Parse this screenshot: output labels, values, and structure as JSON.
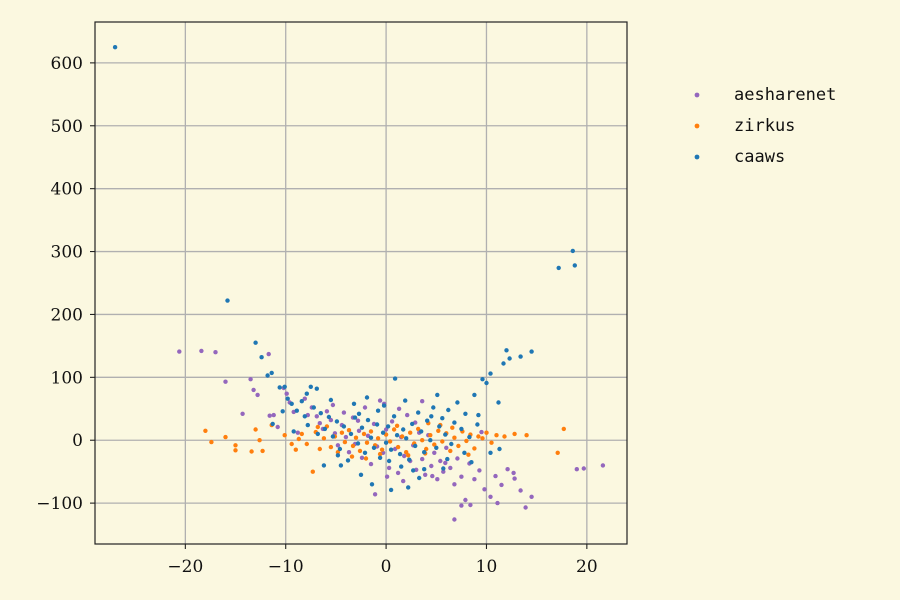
{
  "chart_data": {
    "type": "scatter",
    "title": "",
    "xlabel": "",
    "ylabel": "",
    "xlim": [
      -29,
      24
    ],
    "ylim": [
      -165,
      665
    ],
    "xticks": [
      -20,
      -10,
      0,
      10,
      20
    ],
    "yticks": [
      -100,
      0,
      100,
      200,
      300,
      400,
      500,
      600
    ],
    "xtick_labels": [
      "−20",
      "−10",
      "0",
      "10",
      "20"
    ],
    "ytick_labels": [
      "−100",
      "0",
      "100",
      "200",
      "300",
      "400",
      "500",
      "600"
    ],
    "grid": true,
    "legend_position": "right-outside-top",
    "series": [
      {
        "name": "aesharenet",
        "color": "#9467bd",
        "points": [
          [
            -20.6,
            141
          ],
          [
            -18.4,
            142
          ],
          [
            -17,
            140
          ],
          [
            -16,
            93
          ],
          [
            -14.3,
            42
          ],
          [
            -13.5,
            97
          ],
          [
            -13.2,
            80
          ],
          [
            -12.8,
            72
          ],
          [
            -11.7,
            137
          ],
          [
            -11.2,
            40
          ],
          [
            -10.8,
            21
          ],
          [
            -10.2,
            83
          ],
          [
            -9.6,
            60
          ],
          [
            -9.2,
            45
          ],
          [
            -8.8,
            12
          ],
          [
            -8.1,
            66
          ],
          [
            -7.4,
            52
          ],
          [
            -6.9,
            38
          ],
          [
            -6.6,
            27
          ],
          [
            -6.3,
            18
          ],
          [
            -5.9,
            46
          ],
          [
            -5.5,
            32
          ],
          [
            -5.1,
            11
          ],
          [
            -4.8,
            -8
          ],
          [
            -4.4,
            24
          ],
          [
            -4,
            5
          ],
          [
            -3.7,
            -19
          ],
          [
            -3.3,
            36
          ],
          [
            -3.1,
            -6
          ],
          [
            -2.7,
            15
          ],
          [
            -2.4,
            -28
          ],
          [
            -2.1,
            52
          ],
          [
            -1.8,
            7
          ],
          [
            -1.5,
            -38
          ],
          [
            -1.2,
            26
          ],
          [
            -0.9,
            -10
          ],
          [
            -0.6,
            63
          ],
          [
            -0.3,
            -20
          ],
          [
            0,
            17
          ],
          [
            0.3,
            -44
          ],
          [
            0.6,
            30
          ],
          [
            0.9,
            -14
          ],
          [
            1.2,
            -52
          ],
          [
            1.5,
            5
          ],
          [
            1.8,
            -25
          ],
          [
            2.1,
            40
          ],
          [
            2.4,
            -33
          ],
          [
            2.7,
            -8
          ],
          [
            3,
            -47
          ],
          [
            3.3,
            12
          ],
          [
            3.6,
            -30
          ],
          [
            3.9,
            -55
          ],
          [
            4.2,
            8
          ],
          [
            4.5,
            -41
          ],
          [
            4.8,
            -20
          ],
          [
            5.1,
            -62
          ],
          [
            5.4,
            -33
          ],
          [
            5.7,
            -50
          ],
          [
            6,
            -12
          ],
          [
            6.4,
            -44
          ],
          [
            6.8,
            -70
          ],
          [
            7.1,
            -29
          ],
          [
            7.5,
            -58
          ],
          [
            7.9,
            -95
          ],
          [
            8.3,
            -37
          ],
          [
            8.8,
            -62
          ],
          [
            9.3,
            -48
          ],
          [
            9.8,
            -78
          ],
          [
            10.4,
            -90
          ],
          [
            10.9,
            -57
          ],
          [
            11.5,
            -71
          ],
          [
            12.1,
            -46
          ],
          [
            12.8,
            -61
          ],
          [
            13.4,
            -80
          ],
          [
            13.9,
            -107
          ],
          [
            14.5,
            -90
          ],
          [
            6.8,
            -126
          ],
          [
            7.5,
            -104
          ],
          [
            3.6,
            62
          ],
          [
            1.3,
            50
          ],
          [
            -1.1,
            -86
          ],
          [
            0.1,
            -58
          ],
          [
            2.9,
            28
          ],
          [
            -4.2,
            44
          ],
          [
            -7.8,
            40
          ],
          [
            19,
            -46
          ],
          [
            19.7,
            -45
          ],
          [
            21.6,
            -40
          ],
          [
            -0.2,
            58
          ],
          [
            1.7,
            -65
          ],
          [
            4.6,
            -57
          ],
          [
            8.4,
            -103
          ],
          [
            11.1,
            -100
          ],
          [
            -2.8,
            31
          ],
          [
            -5.3,
            56
          ],
          [
            5.9,
            -36
          ],
          [
            -9.9,
            74
          ],
          [
            9.5,
            13
          ],
          [
            -11.6,
            39
          ],
          [
            12.7,
            -52
          ]
        ]
      },
      {
        "name": "zirkus",
        "color": "#ff7f0e",
        "points": [
          [
            -18,
            15
          ],
          [
            -17.4,
            -3
          ],
          [
            -16,
            5
          ],
          [
            -15,
            -16
          ],
          [
            -15,
            -8
          ],
          [
            -13.4,
            -18
          ],
          [
            -13,
            17
          ],
          [
            -12.6,
            0
          ],
          [
            -12.3,
            -17
          ],
          [
            -11.4,
            24
          ],
          [
            -10.1,
            8
          ],
          [
            -9.4,
            -6
          ],
          [
            -9,
            -15
          ],
          [
            -8.4,
            10
          ],
          [
            -7.9,
            -6
          ],
          [
            -7.3,
            -50
          ],
          [
            -7,
            13
          ],
          [
            -6.6,
            -14
          ],
          [
            -6.2,
            3
          ],
          [
            -5.9,
            22
          ],
          [
            -5.5,
            -11
          ],
          [
            -5.1,
            6
          ],
          [
            -4.8,
            -19
          ],
          [
            -4.4,
            12
          ],
          [
            -4.1,
            -3
          ],
          [
            -3.7,
            16
          ],
          [
            -3.3,
            -9
          ],
          [
            -3,
            4
          ],
          [
            -2.6,
            -17
          ],
          [
            -2.2,
            10
          ],
          [
            -1.9,
            -4
          ],
          [
            -1.5,
            14
          ],
          [
            -1.1,
            -8
          ],
          [
            -0.8,
            3
          ],
          [
            -0.4,
            -15
          ],
          [
            0,
            9
          ],
          [
            0.4,
            -2
          ],
          [
            0.8,
            17
          ],
          [
            1.2,
            -11
          ],
          [
            1.6,
            6
          ],
          [
            2,
            -19
          ],
          [
            2.4,
            12
          ],
          [
            2.8,
            -5
          ],
          [
            3.2,
            18
          ],
          [
            3.6,
            0
          ],
          [
            4,
            -14
          ],
          [
            4.4,
            8
          ],
          [
            4.8,
            -7
          ],
          [
            5.2,
            15
          ],
          [
            5.6,
            -2
          ],
          [
            6,
            11
          ],
          [
            6.4,
            -17
          ],
          [
            6.8,
            4
          ],
          [
            7.2,
            -9
          ],
          [
            7.6,
            14
          ],
          [
            8,
            -1
          ],
          [
            8.4,
            9
          ],
          [
            8.8,
            -13
          ],
          [
            9.2,
            6
          ],
          [
            9.6,
            3
          ],
          [
            10,
            12
          ],
          [
            10.5,
            -4
          ],
          [
            11,
            8
          ],
          [
            11.8,
            6
          ],
          [
            12.8,
            10
          ],
          [
            14,
            8
          ],
          [
            17.1,
            -20
          ],
          [
            17.7,
            18
          ],
          [
            -6.8,
            21
          ],
          [
            -3.4,
            -26
          ],
          [
            2.2,
            -24
          ],
          [
            5.4,
            24
          ],
          [
            -0.6,
            -22
          ],
          [
            1.1,
            23
          ],
          [
            3.9,
            -21
          ],
          [
            -2,
            -29
          ],
          [
            6.6,
            20
          ],
          [
            8.2,
            -23
          ],
          [
            -8.7,
            2
          ],
          [
            4.2,
            27
          ]
        ]
      },
      {
        "name": "caaws",
        "color": "#1f77b4",
        "points": [
          [
            -27,
            625
          ],
          [
            -15.8,
            222
          ],
          [
            -13,
            155
          ],
          [
            -12.4,
            132
          ],
          [
            -11.8,
            103
          ],
          [
            -11.4,
            107
          ],
          [
            -10.6,
            84
          ],
          [
            -10.1,
            85
          ],
          [
            -9.8,
            66
          ],
          [
            -9.4,
            58
          ],
          [
            -8.9,
            47
          ],
          [
            -8.4,
            62
          ],
          [
            -7.9,
            74
          ],
          [
            -7.5,
            85
          ],
          [
            -7.2,
            52
          ],
          [
            -6.9,
            82
          ],
          [
            -6.5,
            43
          ],
          [
            -6.1,
            18
          ],
          [
            -5.7,
            37
          ],
          [
            -5.3,
            6
          ],
          [
            -4.9,
            30
          ],
          [
            -4.6,
            -14
          ],
          [
            -4.2,
            22
          ],
          [
            -3.8,
            -32
          ],
          [
            -3.5,
            10
          ],
          [
            -3.1,
            36
          ],
          [
            -2.8,
            -5
          ],
          [
            -2.4,
            20
          ],
          [
            -2.1,
            -20
          ],
          [
            -1.8,
            32
          ],
          [
            -1.5,
            4
          ],
          [
            -1.2,
            -12
          ],
          [
            -0.9,
            25
          ],
          [
            -0.6,
            -28
          ],
          [
            -0.3,
            12
          ],
          [
            0,
            -4
          ],
          [
            0.2,
            22
          ],
          [
            0.5,
            -15
          ],
          [
            0.8,
            38
          ],
          [
            1.1,
            8
          ],
          [
            1.4,
            -22
          ],
          [
            1.7,
            17
          ],
          [
            2,
            3
          ],
          [
            2.3,
            -31
          ],
          [
            2.6,
            26
          ],
          [
            2.9,
            -9
          ],
          [
            3.2,
            44
          ],
          [
            3.5,
            14
          ],
          [
            3.8,
            -19
          ],
          [
            4.1,
            31
          ],
          [
            4.4,
            0
          ],
          [
            4.7,
            52
          ],
          [
            5,
            -12
          ],
          [
            5.3,
            22
          ],
          [
            5.6,
            35
          ],
          [
            5.9,
            9
          ],
          [
            6.2,
            48
          ],
          [
            6.5,
            -6
          ],
          [
            6.8,
            28
          ],
          [
            7.1,
            60
          ],
          [
            7.5,
            18
          ],
          [
            7.9,
            42
          ],
          [
            8.3,
            5
          ],
          [
            8.8,
            72
          ],
          [
            9.2,
            40
          ],
          [
            9.6,
            97
          ],
          [
            10,
            91
          ],
          [
            10.4,
            106
          ],
          [
            11.2,
            60
          ],
          [
            11.7,
            122
          ],
          [
            12,
            143
          ],
          [
            12.3,
            130
          ],
          [
            13.4,
            133
          ],
          [
            14.5,
            141
          ],
          [
            17.2,
            274
          ],
          [
            18.6,
            301
          ],
          [
            18.8,
            278
          ],
          [
            0.9,
            98
          ],
          [
            -6.2,
            -40
          ],
          [
            -1.4,
            -70
          ],
          [
            0.5,
            -79
          ],
          [
            2.2,
            -75
          ],
          [
            -4.5,
            -40
          ],
          [
            3.8,
            -46
          ],
          [
            -2.5,
            -55
          ],
          [
            1.5,
            -42
          ],
          [
            -7.8,
            24
          ],
          [
            9.1,
            25
          ],
          [
            5.1,
            72
          ],
          [
            -3.2,
            58
          ],
          [
            6.1,
            -30
          ],
          [
            -5.5,
            64
          ],
          [
            4.5,
            38
          ],
          [
            -0.8,
            47
          ],
          [
            2.7,
            -48
          ],
          [
            7.8,
            -20
          ],
          [
            -8.1,
            38
          ],
          [
            -10.3,
            46
          ],
          [
            -1.9,
            68
          ],
          [
            3.3,
            -60
          ],
          [
            1.9,
            63
          ],
          [
            -4.8,
            -24
          ],
          [
            8.5,
            -35
          ],
          [
            -6.8,
            10
          ],
          [
            0.3,
            -33
          ],
          [
            -2.7,
            42
          ],
          [
            5.7,
            -45
          ],
          [
            -9.2,
            14
          ],
          [
            10.4,
            -20
          ],
          [
            -0.2,
            55
          ],
          [
            11.3,
            -14
          ],
          [
            -11.3,
            26
          ]
        ]
      }
    ]
  }
}
